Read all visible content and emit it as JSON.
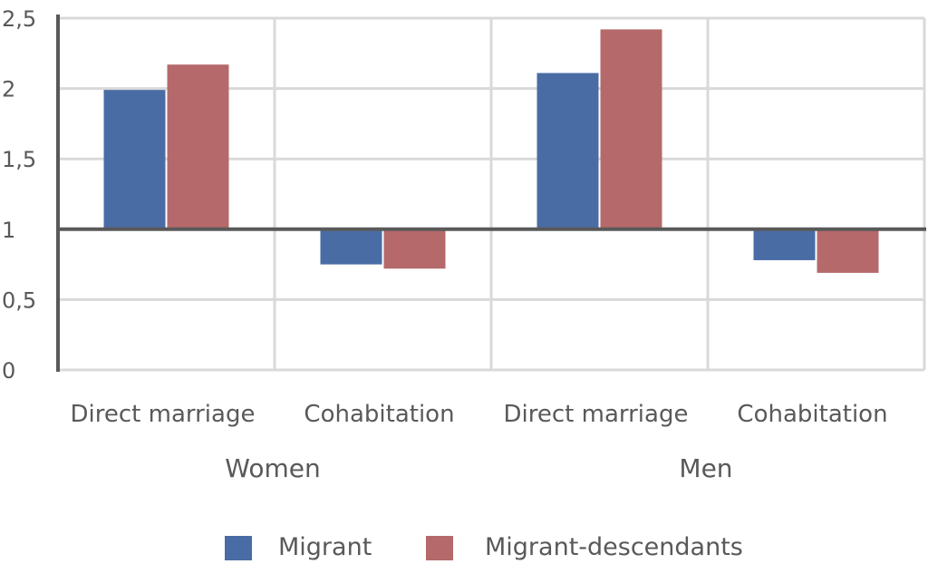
{
  "chart_data": {
    "type": "bar",
    "title": "",
    "xlabel": "",
    "ylabel": "",
    "ylim": [
      0,
      2.5
    ],
    "baseline": 1,
    "yticks": [
      0,
      0.5,
      1,
      1.5,
      2,
      2.5
    ],
    "ytick_labels": [
      "0",
      "0,5",
      "1",
      "1,5",
      "2",
      "2,5"
    ],
    "groups": [
      "Women",
      "Men"
    ],
    "categories": [
      "Direct marriage",
      "Cohabitation",
      "Direct marriage",
      "Cohabitation"
    ],
    "series": [
      {
        "name": "Migrant",
        "color": "#4a6ca5",
        "values": [
          1.99,
          0.75,
          2.11,
          0.78
        ]
      },
      {
        "name": "Migrant-descendants",
        "color": "#b5696b",
        "values": [
          2.17,
          0.72,
          2.42,
          0.69
        ]
      }
    ],
    "grid": true,
    "legend_position": "bottom"
  }
}
